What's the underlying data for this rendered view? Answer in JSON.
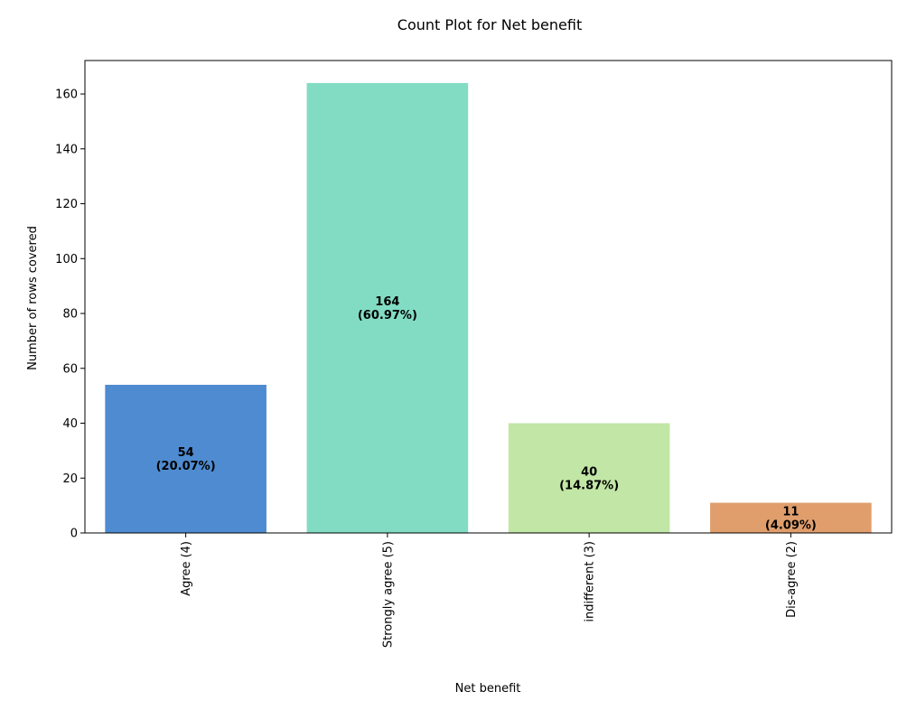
{
  "chart_data": {
    "type": "bar",
    "title": "Count Plot for Net benefit",
    "xlabel": "Net benefit",
    "ylabel": "Number of rows covered",
    "categories": [
      "Agree (4)",
      "Strongly agree (5)",
      "indifferent (3)",
      "Dis-agree (2)"
    ],
    "values": [
      54,
      164,
      40,
      11
    ],
    "percent_labels": [
      "(20.07%)",
      "(60.97%)",
      "(14.87%)",
      "(4.09%)"
    ],
    "colors": [
      "#4e8bd0",
      "#82dcc3",
      "#c2e6a6",
      "#e09e6c"
    ],
    "ylim": [
      0,
      172.2
    ],
    "yticks": [
      0,
      20,
      40,
      60,
      80,
      100,
      120,
      140,
      160
    ],
    "grid": false,
    "legend": "none"
  }
}
